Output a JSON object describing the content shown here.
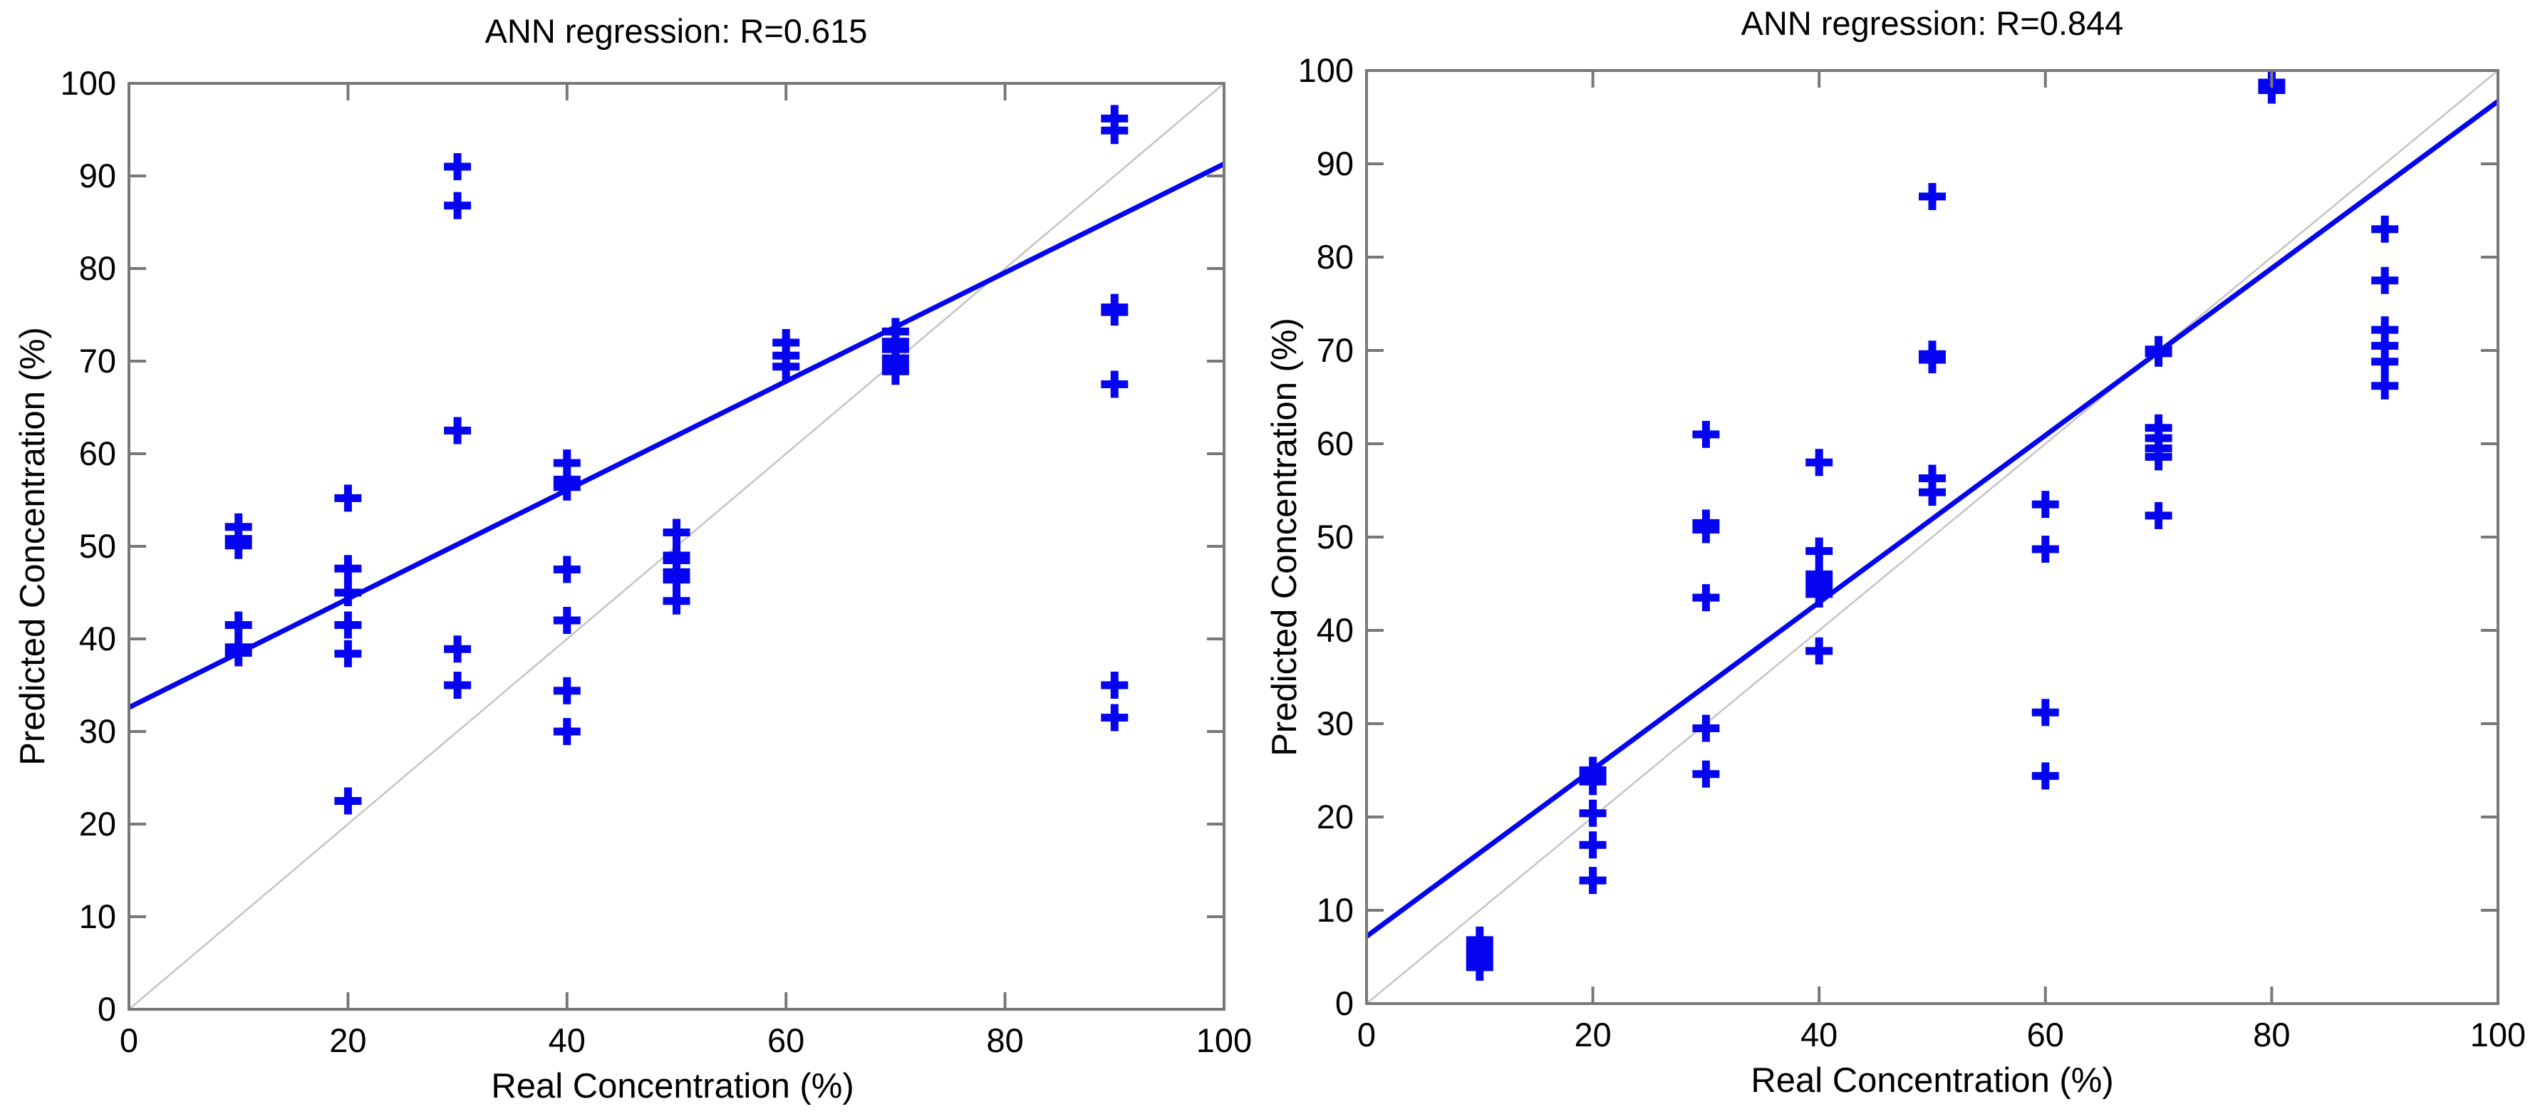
{
  "figure": {
    "colors": {
      "marker": "#0404f0",
      "fit_line": "#0404f0",
      "identity_line": "#c4c4c4",
      "axis": "#787878",
      "text": "#000000",
      "background": "#ffffff"
    }
  },
  "chart_data": [
    {
      "type": "scatter",
      "title": "ANN regression: R=0.615",
      "xlabel": "Real Concentration (%)",
      "ylabel": "Predicted Concentration (%)",
      "r_value": 0.615,
      "xlim": [
        0,
        100
      ],
      "ylim": [
        0,
        100
      ],
      "xticks": [
        0,
        20,
        40,
        60,
        80,
        100
      ],
      "yticks": [
        0,
        10,
        20,
        30,
        40,
        50,
        60,
        70,
        80,
        90,
        100
      ],
      "grid": false,
      "marker": "+",
      "fit_line": {
        "x": [
          0,
          100
        ],
        "y": [
          32.6,
          91.3
        ]
      },
      "identity_line": {
        "x": [
          0,
          100
        ],
        "y": [
          0,
          100
        ]
      },
      "points": [
        [
          10,
          52.1
        ],
        [
          10,
          50.8
        ],
        [
          10,
          50.1
        ],
        [
          10,
          41.5
        ],
        [
          10,
          39.1
        ],
        [
          10,
          38.5
        ],
        [
          20,
          55.2
        ],
        [
          20,
          47.6
        ],
        [
          20,
          45.0
        ],
        [
          20,
          41.5
        ],
        [
          20,
          38.4
        ],
        [
          20,
          22.5
        ],
        [
          30,
          91.0
        ],
        [
          30,
          86.8
        ],
        [
          30,
          62.5
        ],
        [
          30,
          38.9
        ],
        [
          30,
          35.0
        ],
        [
          40,
          59.0
        ],
        [
          40,
          57.2
        ],
        [
          40,
          56.4
        ],
        [
          40,
          47.5
        ],
        [
          40,
          42.0
        ],
        [
          40,
          34.4
        ],
        [
          40,
          30.0
        ],
        [
          50,
          51.5
        ],
        [
          50,
          49.0
        ],
        [
          50,
          48.5
        ],
        [
          50,
          47.2
        ],
        [
          50,
          46.4
        ],
        [
          50,
          44.1
        ],
        [
          60,
          72.0
        ],
        [
          60,
          70.6
        ],
        [
          60,
          69.4
        ],
        [
          70,
          73.2
        ],
        [
          70,
          72.1
        ],
        [
          70,
          71.3
        ],
        [
          70,
          70.3
        ],
        [
          70,
          69.6
        ],
        [
          70,
          68.9
        ],
        [
          90,
          96.2
        ],
        [
          90,
          94.9
        ],
        [
          90,
          75.8
        ],
        [
          90,
          75.3
        ],
        [
          90,
          67.5
        ],
        [
          90,
          35.0
        ],
        [
          90,
          31.5
        ]
      ]
    },
    {
      "type": "scatter",
      "title": "ANN regression: R=0.844",
      "xlabel": "Real Concentration (%)",
      "ylabel": "Predicted Concentration (%)",
      "r_value": 0.844,
      "xlim": [
        0,
        100
      ],
      "ylim": [
        0,
        100
      ],
      "xticks": [
        0,
        20,
        40,
        60,
        80,
        100
      ],
      "yticks": [
        0,
        10,
        20,
        30,
        40,
        50,
        60,
        70,
        80,
        90,
        100
      ],
      "grid": false,
      "marker": "+",
      "fit_line": {
        "x": [
          0,
          100
        ],
        "y": [
          7.2,
          96.7
        ]
      },
      "identity_line": {
        "x": [
          0,
          100
        ],
        "y": [
          0,
          100
        ]
      },
      "points": [
        [
          10,
          6.8
        ],
        [
          10,
          6.2
        ],
        [
          10,
          5.7
        ],
        [
          10,
          5.2
        ],
        [
          10,
          4.6
        ],
        [
          10,
          3.9
        ],
        [
          20,
          25.0
        ],
        [
          20,
          24.4
        ],
        [
          20,
          23.8
        ],
        [
          20,
          20.4
        ],
        [
          20,
          17.0
        ],
        [
          20,
          13.2
        ],
        [
          30,
          61.0
        ],
        [
          30,
          51.5
        ],
        [
          30,
          50.8
        ],
        [
          30,
          43.5
        ],
        [
          30,
          29.5
        ],
        [
          30,
          24.6
        ],
        [
          40,
          58.0
        ],
        [
          40,
          48.5
        ],
        [
          40,
          46.0
        ],
        [
          40,
          45.2
        ],
        [
          40,
          44.5
        ],
        [
          40,
          43.9
        ],
        [
          40,
          37.8
        ],
        [
          50,
          86.5
        ],
        [
          50,
          69.6
        ],
        [
          50,
          69.0
        ],
        [
          50,
          56.3
        ],
        [
          50,
          54.8
        ],
        [
          60,
          53.5
        ],
        [
          60,
          48.7
        ],
        [
          60,
          31.2
        ],
        [
          60,
          24.4
        ],
        [
          70,
          70.1
        ],
        [
          70,
          69.7
        ],
        [
          70,
          61.7
        ],
        [
          70,
          60.6
        ],
        [
          70,
          59.5
        ],
        [
          70,
          58.6
        ],
        [
          70,
          52.3
        ],
        [
          80,
          98.7
        ],
        [
          80,
          98.3
        ],
        [
          80,
          97.9
        ],
        [
          90,
          83.0
        ],
        [
          90,
          77.5
        ],
        [
          90,
          72.2
        ],
        [
          90,
          70.5
        ],
        [
          90,
          68.8
        ],
        [
          90,
          66.2
        ]
      ]
    }
  ]
}
